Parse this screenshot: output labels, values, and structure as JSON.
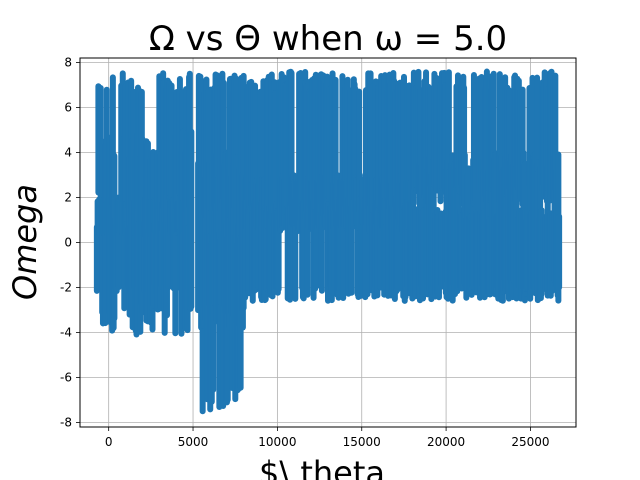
{
  "chart_data": {
    "type": "scatter",
    "title": "Ω vs Θ when ω = 5.0",
    "xlabel": "$\\ theta",
    "ylabel": "Omega",
    "xlim": [
      -1700,
      27700
    ],
    "ylim": [
      -8.2,
      8.2
    ],
    "xticks": [
      0,
      5000,
      10000,
      15000,
      20000,
      25000
    ],
    "yticks": [
      -8,
      -6,
      -4,
      -2,
      0,
      2,
      4,
      6,
      8
    ],
    "grid": true,
    "series": [
      {
        "color": "#1f77b4",
        "segments": [
          {
            "x_start": -700,
            "x_end": 4900,
            "bands": [
              [
                1.4,
                7.6
              ],
              [
                -4.1,
                5.0
              ],
              [
                -2.3,
                1.0
              ],
              [
                0.3,
                2.0
              ]
            ]
          },
          {
            "x_start": 5300,
            "x_end": 8000,
            "bands": [
              [
                1.0,
                7.6
              ],
              [
                -7.6,
                1.0
              ],
              [
                -3.8,
                4.0
              ]
            ]
          },
          {
            "x_start": 8000,
            "x_end": 18000,
            "bands": [
              [
                1.0,
                7.6
              ],
              [
                0.5,
                3.0
              ],
              [
                -2.6,
                2.0
              ]
            ]
          },
          {
            "x_start": 18000,
            "x_end": 26700,
            "bands": [
              [
                1.7,
                7.6
              ],
              [
                -2.5,
                1.5
              ],
              [
                -2.6,
                4.0
              ]
            ]
          }
        ]
      }
    ]
  }
}
